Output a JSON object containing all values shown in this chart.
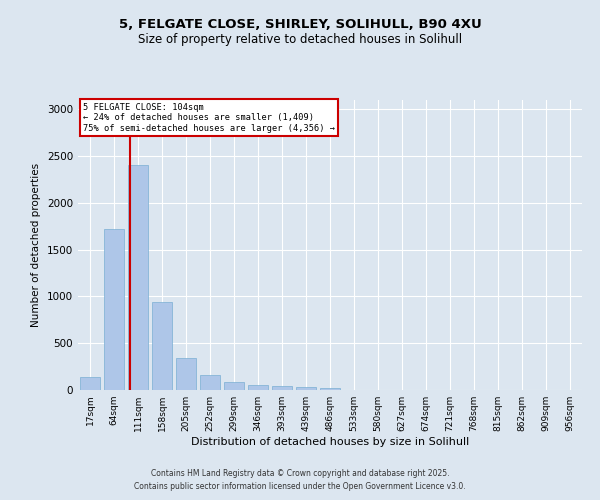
{
  "title_line1": "5, FELGATE CLOSE, SHIRLEY, SOLIHULL, B90 4XU",
  "title_line2": "Size of property relative to detached houses in Solihull",
  "xlabel": "Distribution of detached houses by size in Solihull",
  "ylabel": "Number of detached properties",
  "categories": [
    "17sqm",
    "64sqm",
    "111sqm",
    "158sqm",
    "205sqm",
    "252sqm",
    "299sqm",
    "346sqm",
    "393sqm",
    "439sqm",
    "486sqm",
    "533sqm",
    "580sqm",
    "627sqm",
    "674sqm",
    "721sqm",
    "768sqm",
    "815sqm",
    "862sqm",
    "909sqm",
    "956sqm"
  ],
  "values": [
    140,
    1720,
    2400,
    940,
    340,
    165,
    90,
    55,
    45,
    30,
    20,
    5,
    2,
    0,
    0,
    0,
    0,
    0,
    0,
    0,
    0
  ],
  "bar_color": "#aec6e8",
  "bar_edge_color": "#7aafd4",
  "vline_color": "#cc0000",
  "annotation_title": "5 FELGATE CLOSE: 104sqm",
  "annotation_line2": "← 24% of detached houses are smaller (1,409)",
  "annotation_line3": "75% of semi-detached houses are larger (4,356) →",
  "annotation_box_color": "#cc0000",
  "ylim": [
    0,
    3100
  ],
  "footnote1": "Contains HM Land Registry data © Crown copyright and database right 2025.",
  "footnote2": "Contains public sector information licensed under the Open Government Licence v3.0.",
  "bg_color": "#dce6f0",
  "plot_bg_color": "#dce6f0"
}
